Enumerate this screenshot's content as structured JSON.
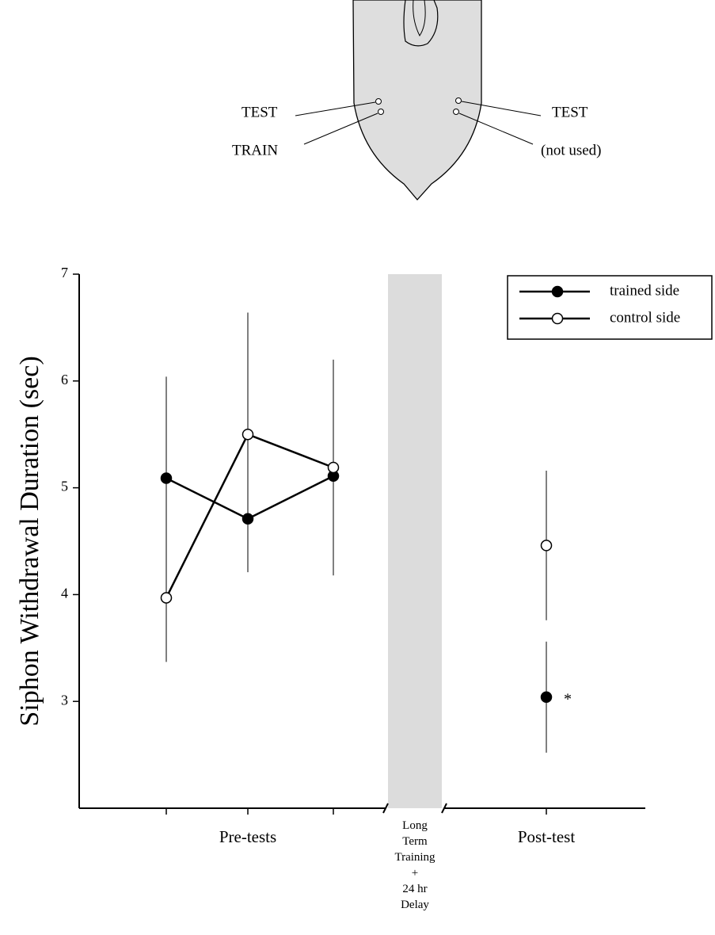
{
  "diagram": {
    "labels": [
      "TEST",
      "TRAIN",
      "TEST",
      "(not used)"
    ]
  },
  "chart_data": {
    "type": "line",
    "y_label": "Siphon Withdrawal Duration (sec)",
    "categories": [
      null,
      null,
      null,
      "Long\nTerm\nTraining\n+\n24 hr\nDelay",
      null
    ],
    "x_group_labels": [
      "Pre-tests",
      "Post-test"
    ],
    "series": [
      {
        "name": "trained side",
        "color": "#000000",
        "marker_fill": "#000000",
        "values": [
          5.09,
          4.71,
          5.11,
          null,
          3.04
        ],
        "errors": [
          0.95,
          0.5,
          0.93,
          null,
          0.52
        ]
      },
      {
        "name": "control side",
        "color": "#000000",
        "marker_fill": "#ffffff",
        "values": [
          3.97,
          5.5,
          5.19,
          null,
          4.46
        ],
        "errors": [
          0.6,
          1.14,
          1.01,
          null,
          0.7
        ]
      }
    ],
    "annotation": "*",
    "ylim": [
      2,
      7
    ],
    "yticks": [
      3,
      4,
      5,
      6,
      7
    ],
    "legend": "upper right"
  }
}
